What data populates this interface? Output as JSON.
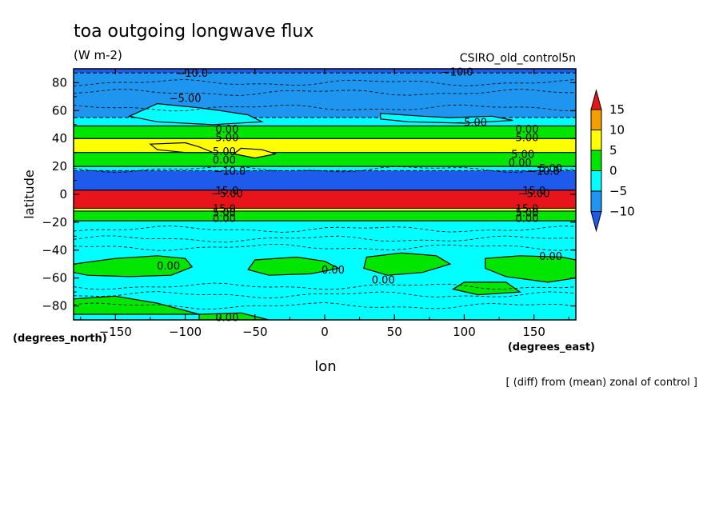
{
  "chart_data": {
    "type": "heatmap",
    "title": "toa outgoing longwave flux",
    "units": "(W m-2)",
    "model": "CSIRO_old_control5n",
    "xlabel": "lon",
    "ylabel": "latitude",
    "xunits": "(degrees_east)",
    "yunits": "(degrees_north)",
    "footnote": "[ (diff) from (mean) zonal of control ]",
    "xlim": [
      -180,
      180
    ],
    "ylim": [
      -90,
      90
    ],
    "x_ticks": [
      -150,
      -100,
      -50,
      0,
      50,
      100,
      150
    ],
    "x_tick_labels": [
      "−150",
      "−100",
      "−50",
      "0",
      "50",
      "100",
      "150"
    ],
    "y_ticks": [
      80,
      60,
      40,
      20,
      0,
      -20,
      -40,
      -60,
      -80
    ],
    "y_tick_labels": [
      "80",
      "60",
      "40",
      "20",
      "0",
      "−20",
      "−40",
      "−60",
      "−80"
    ],
    "colorbar": {
      "levels": [
        15,
        10,
        5,
        0,
        -5,
        -10
      ],
      "labels": [
        "15",
        "10",
        "5",
        "0",
        "−5",
        "−10"
      ],
      "bins": [
        {
          "from": 15,
          "to": null,
          "color": "#e8141c"
        },
        {
          "from": 10,
          "to": 15,
          "color": "#f59e00"
        },
        {
          "from": 5,
          "to": 10,
          "color": "#ffff00"
        },
        {
          "from": 0,
          "to": 5,
          "color": "#00e600"
        },
        {
          "from": -5,
          "to": 0,
          "color": "#00ffff"
        },
        {
          "from": -10,
          "to": -5,
          "color": "#1e96f0"
        },
        {
          "from": null,
          "to": -10,
          "color": "#1e5aeb"
        }
      ]
    },
    "bands": [
      {
        "lat_from": 90,
        "lat_to": 87,
        "value": -12
      },
      {
        "lat_from": 87,
        "lat_to": 55,
        "value": -7
      },
      {
        "lat_from": 55,
        "lat_to": 49,
        "value": -3
      },
      {
        "lat_from": 49,
        "lat_to": 40,
        "value": 2
      },
      {
        "lat_from": 40,
        "lat_to": 30,
        "value": 7
      },
      {
        "lat_from": 30,
        "lat_to": 20,
        "value": 2
      },
      {
        "lat_from": 20,
        "lat_to": 17,
        "value": -3
      },
      {
        "lat_from": 17,
        "lat_to": 3,
        "value": -12
      },
      {
        "lat_from": 3,
        "lat_to": -10,
        "value": 17
      },
      {
        "lat_from": -10,
        "lat_to": -12,
        "value": 7
      },
      {
        "lat_from": -12,
        "lat_to": -19,
        "value": 2
      },
      {
        "lat_from": -19,
        "lat_to": -90,
        "value": -2
      }
    ],
    "patches": [
      {
        "value": -3,
        "points": [
          [
            -120,
            65
          ],
          [
            -90,
            62
          ],
          [
            -75,
            60
          ],
          [
            -55,
            57
          ],
          [
            -45,
            52
          ],
          [
            -80,
            50
          ],
          [
            -120,
            52
          ],
          [
            -140,
            56
          ]
        ]
      },
      {
        "value": -3,
        "points": [
          [
            40,
            58
          ],
          [
            70,
            56
          ],
          [
            90,
            55
          ],
          [
            120,
            56
          ],
          [
            135,
            53
          ],
          [
            100,
            51
          ],
          [
            60,
            52
          ],
          [
            40,
            54
          ]
        ]
      },
      {
        "value": 7,
        "points": [
          [
            -125,
            36
          ],
          [
            -100,
            37
          ],
          [
            -90,
            34
          ],
          [
            -80,
            30
          ],
          [
            -100,
            30
          ],
          [
            -120,
            32
          ]
        ]
      },
      {
        "value": 7,
        "points": [
          [
            -60,
            33
          ],
          [
            -45,
            32
          ],
          [
            -35,
            29
          ],
          [
            -50,
            26
          ],
          [
            -65,
            29
          ]
        ]
      },
      {
        "value": 2,
        "points": [
          [
            -180,
            -50
          ],
          [
            -150,
            -46
          ],
          [
            -120,
            -44
          ],
          [
            -100,
            -46
          ],
          [
            -95,
            -52
          ],
          [
            -110,
            -58
          ],
          [
            -140,
            -59
          ],
          [
            -170,
            -58
          ],
          [
            -180,
            -56
          ]
        ]
      },
      {
        "value": 2,
        "points": [
          [
            -50,
            -47
          ],
          [
            -20,
            -45
          ],
          [
            0,
            -48
          ],
          [
            10,
            -53
          ],
          [
            -10,
            -57
          ],
          [
            -40,
            -58
          ],
          [
            -55,
            -54
          ]
        ]
      },
      {
        "value": 2,
        "points": [
          [
            30,
            -45
          ],
          [
            55,
            -42
          ],
          [
            80,
            -44
          ],
          [
            90,
            -50
          ],
          [
            70,
            -56
          ],
          [
            45,
            -58
          ],
          [
            28,
            -53
          ]
        ]
      },
      {
        "value": 2,
        "points": [
          [
            115,
            -46
          ],
          [
            140,
            -44
          ],
          [
            170,
            -45
          ],
          [
            180,
            -47
          ],
          [
            180,
            -60
          ],
          [
            160,
            -63
          ],
          [
            130,
            -59
          ],
          [
            115,
            -53
          ]
        ]
      },
      {
        "value": 2,
        "points": [
          [
            100,
            -63
          ],
          [
            130,
            -63
          ],
          [
            140,
            -70
          ],
          [
            110,
            -72
          ],
          [
            92,
            -68
          ]
        ]
      },
      {
        "value": 2,
        "points": [
          [
            -180,
            -75
          ],
          [
            -150,
            -73
          ],
          [
            -120,
            -78
          ],
          [
            -90,
            -86
          ],
          [
            -180,
            -86
          ]
        ]
      },
      {
        "value": 2,
        "points": [
          [
            -90,
            -86
          ],
          [
            -60,
            -85
          ],
          [
            -40,
            -90
          ],
          [
            -90,
            -90
          ]
        ]
      }
    ],
    "contour_labels": [
      {
        "text": "−10.0",
        "lon": -95,
        "lat": 87
      },
      {
        "text": "−10.0",
        "lon": 95,
        "lat": 88
      },
      {
        "text": "−5.00",
        "lon": -100,
        "lat": 69
      },
      {
        "text": "−5.00",
        "lon": 105,
        "lat": 52
      },
      {
        "text": "0.00",
        "lon": -70,
        "lat": 47
      },
      {
        "text": "0.00",
        "lon": 145,
        "lat": 47
      },
      {
        "text": "5.00",
        "lon": -70,
        "lat": 41
      },
      {
        "text": "5.00",
        "lon": 145,
        "lat": 41
      },
      {
        "text": "5.00",
        "lon": -72,
        "lat": 31
      },
      {
        "text": "5.00",
        "lon": 142,
        "lat": 29
      },
      {
        "text": "0.00",
        "lon": -72,
        "lat": 25
      },
      {
        "text": "0.00",
        "lon": 140,
        "lat": 23
      },
      {
        "text": "−10.0",
        "lon": -68,
        "lat": 17
      },
      {
        "text": "−10.0",
        "lon": 157,
        "lat": 17
      },
      {
        "text": "5.00",
        "lon": 162,
        "lat": 19
      },
      {
        "text": "−5.00",
        "lon": -70,
        "lat": 1
      },
      {
        "text": "15.0",
        "lon": -70,
        "lat": 3
      },
      {
        "text": "−5.00",
        "lon": 150,
        "lat": 1
      },
      {
        "text": "15.0",
        "lon": 150,
        "lat": 3
      },
      {
        "text": "15.0",
        "lon": -72,
        "lat": -10
      },
      {
        "text": "5.00",
        "lon": -72,
        "lat": -13
      },
      {
        "text": "0.00",
        "lon": -72,
        "lat": -17
      },
      {
        "text": "15.0",
        "lon": 145,
        "lat": -10
      },
      {
        "text": "5.00",
        "lon": 145,
        "lat": -13
      },
      {
        "text": "0.00",
        "lon": 145,
        "lat": -17
      },
      {
        "text": "0.00",
        "lon": -112,
        "lat": -51
      },
      {
        "text": "0.00",
        "lon": 6,
        "lat": -54
      },
      {
        "text": "0.00",
        "lon": 42,
        "lat": -61
      },
      {
        "text": "0.00",
        "lon": 162,
        "lat": -44
      },
      {
        "text": "0.00",
        "lon": -70,
        "lat": -88
      }
    ]
  }
}
